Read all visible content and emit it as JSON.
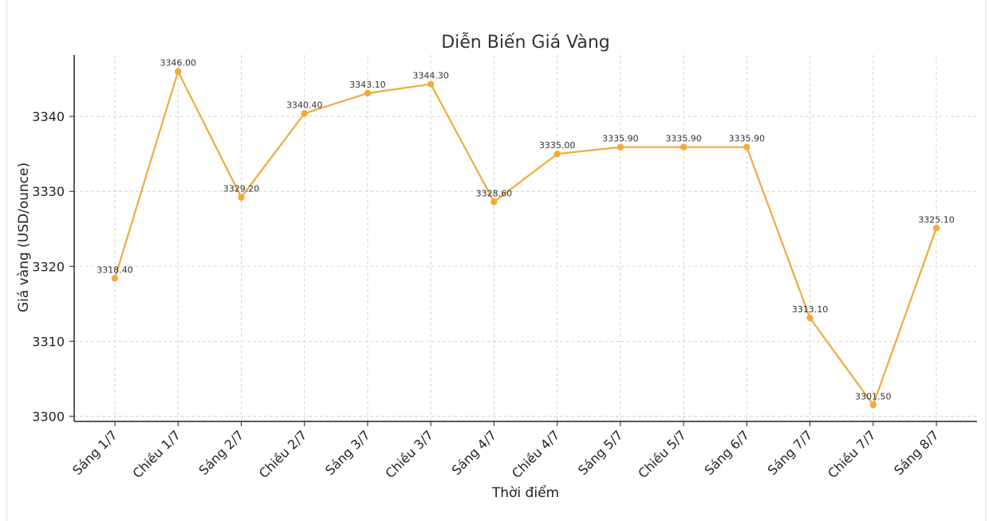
{
  "chart_data": {
    "type": "line",
    "title": "Diễn Biến Giá Vàng",
    "xlabel": "Thời điểm",
    "ylabel": "Giá vàng (USD/ounce)",
    "categories": [
      "Sáng 1/7",
      "Chiều 1/7",
      "Sáng 2/7",
      "Chiều 2/7",
      "Sáng 3/7",
      "Chiều 3/7",
      "Sáng 4/7",
      "Chiều 4/7",
      "Sáng 5/7",
      "Chiều 5/7",
      "Sáng 6/7",
      "Sáng 7/7",
      "Chiều 7/7",
      "Sáng 8/7"
    ],
    "values": [
      3318.4,
      3346.0,
      3329.2,
      3340.4,
      3343.1,
      3344.3,
      3328.6,
      3335.0,
      3335.9,
      3335.9,
      3335.9,
      3313.1,
      3301.5,
      3325.1
    ],
    "data_labels": [
      "3318.40",
      "3346.00",
      "3329.20",
      "3340.40",
      "3343.10",
      "3344.30",
      "3328.60",
      "3335.00",
      "3335.90",
      "3335.90",
      "3335.90",
      "3313.10",
      "3301.50",
      "3325.10"
    ],
    "ylim": [
      3299.3,
      3348.2
    ],
    "yticks": [
      3300,
      3310,
      3320,
      3330,
      3340
    ],
    "ytick_labels": [
      "3300",
      "3310",
      "3320",
      "3330",
      "3340"
    ],
    "grid": true,
    "line_color": "#f0ab3c"
  }
}
